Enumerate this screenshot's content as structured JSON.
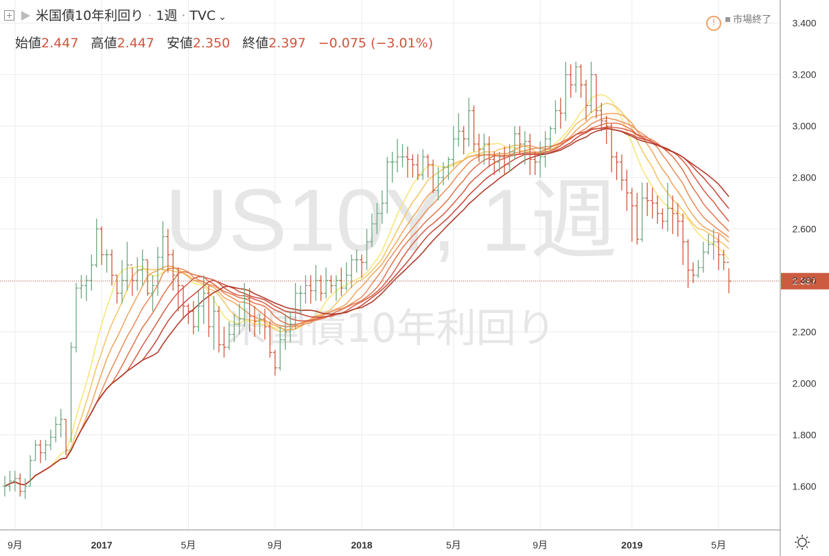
{
  "header": {
    "title": "米国債10年利回り",
    "interval": "1週",
    "source": "TVC",
    "status": "市場終了"
  },
  "ohlc": {
    "open_label": "始値",
    "open": "2.447",
    "high_label": "高値",
    "high": "2.447",
    "low_label": "安値",
    "low": "2.350",
    "close_label": "終値",
    "close": "2.397",
    "change": "−0.075 (−3.01%)"
  },
  "watermark": {
    "big": "US10Y, 1週",
    "small": "米国債10年利回り"
  },
  "colors": {
    "up": "#6aa67e",
    "down": "#d0543a",
    "price_tag": "#cc5b40",
    "ribbon": [
      "#f7e67a",
      "#f4c66a",
      "#f0a862",
      "#eb8f5d",
      "#e37852",
      "#d8614a",
      "#c94c3c",
      "#b03a2a"
    ]
  },
  "chart_data": {
    "type": "ohlc",
    "ylim": [
      1.43,
      3.49
    ],
    "yticks": [
      "1.600",
      "1.800",
      "2.000",
      "2.200",
      "2.400",
      "2.600",
      "2.800",
      "3.000",
      "3.200",
      "3.400"
    ],
    "xticks": [
      {
        "label": "9月",
        "week": 2
      },
      {
        "label": "2017",
        "week": 19
      },
      {
        "label": "5月",
        "week": 36
      },
      {
        "label": "9月",
        "week": 53
      },
      {
        "label": "2018",
        "week": 70
      },
      {
        "label": "5月",
        "week": 88
      },
      {
        "label": "9月",
        "week": 105
      },
      {
        "label": "2019",
        "week": 123
      },
      {
        "label": "5月",
        "week": 140
      }
    ],
    "last_price": "2.397",
    "close": [
      1.6,
      1.62,
      1.63,
      1.58,
      1.6,
      1.7,
      1.76,
      1.73,
      1.76,
      1.79,
      1.84,
      1.86,
      1.74,
      2.14,
      2.37,
      2.38,
      2.4,
      2.46,
      2.6,
      2.5,
      2.5,
      2.42,
      2.35,
      2.4,
      2.46,
      2.4,
      2.44,
      2.48,
      2.35,
      2.38,
      2.49,
      2.57,
      2.5,
      2.42,
      2.38,
      2.3,
      2.28,
      2.22,
      2.3,
      2.35,
      2.22,
      2.28,
      2.15,
      2.14,
      2.19,
      2.23,
      2.25,
      2.33,
      2.26,
      2.24,
      2.25,
      2.22,
      2.12,
      2.06,
      2.17,
      2.2,
      2.23,
      2.35,
      2.35,
      2.38,
      2.36,
      2.4,
      2.35,
      2.4,
      2.38,
      2.4,
      2.37,
      2.42,
      2.48,
      2.48,
      2.47,
      2.55,
      2.62,
      2.66,
      2.7,
      2.86,
      2.86,
      2.88,
      2.88,
      2.87,
      2.85,
      2.81,
      2.88,
      2.85,
      2.75,
      2.8,
      2.84,
      2.87,
      2.95,
      2.98,
      2.95,
      3.06,
      2.93,
      2.91,
      2.93,
      2.87,
      2.86,
      2.88,
      2.85,
      2.9,
      2.97,
      2.93,
      2.94,
      2.87,
      2.86,
      2.88,
      2.95,
      2.99,
      3.06,
      3.05,
      3.2,
      3.16,
      3.23,
      3.16,
      3.08,
      3.2,
      3.06,
      3.02,
      3.0,
      2.88,
      2.86,
      2.79,
      2.74,
      2.69,
      2.56,
      2.72,
      2.71,
      2.7,
      2.66,
      2.63,
      2.68,
      2.66,
      2.63,
      2.55,
      2.44,
      2.42,
      2.45,
      2.51,
      2.54,
      2.55,
      2.5,
      2.47,
      2.397
    ],
    "high": [
      1.64,
      1.66,
      1.66,
      1.65,
      1.63,
      1.72,
      1.78,
      1.78,
      1.78,
      1.82,
      1.87,
      1.9,
      1.86,
      2.16,
      2.39,
      2.42,
      2.42,
      2.5,
      2.64,
      2.61,
      2.52,
      2.52,
      2.42,
      2.48,
      2.55,
      2.45,
      2.49,
      2.52,
      2.48,
      2.42,
      2.53,
      2.63,
      2.6,
      2.52,
      2.45,
      2.38,
      2.31,
      2.32,
      2.36,
      2.42,
      2.38,
      2.34,
      2.3,
      2.22,
      2.24,
      2.27,
      2.31,
      2.39,
      2.37,
      2.3,
      2.27,
      2.29,
      2.24,
      2.13,
      2.22,
      2.27,
      2.28,
      2.39,
      2.38,
      2.42,
      2.42,
      2.46,
      2.42,
      2.45,
      2.42,
      2.42,
      2.45,
      2.47,
      2.5,
      2.52,
      2.5,
      2.6,
      2.66,
      2.7,
      2.75,
      2.88,
      2.9,
      2.95,
      2.93,
      2.92,
      2.89,
      2.89,
      2.91,
      2.89,
      2.87,
      2.84,
      2.86,
      2.88,
      3.0,
      3.05,
      3.0,
      3.11,
      3.08,
      2.97,
      2.97,
      2.96,
      2.9,
      2.9,
      2.92,
      2.93,
      3.0,
      3.0,
      2.98,
      2.97,
      2.9,
      2.94,
      2.98,
      3.0,
      3.1,
      3.11,
      3.25,
      3.24,
      3.25,
      3.24,
      3.18,
      3.25,
      3.2,
      3.09,
      3.04,
      3.01,
      2.9,
      2.89,
      2.83,
      2.76,
      2.74,
      2.78,
      2.78,
      2.76,
      2.73,
      2.68,
      2.78,
      2.73,
      2.7,
      2.66,
      2.56,
      2.47,
      2.48,
      2.55,
      2.58,
      2.6,
      2.58,
      2.52,
      2.447
    ],
    "low": [
      1.56,
      1.58,
      1.58,
      1.56,
      1.55,
      1.6,
      1.7,
      1.69,
      1.7,
      1.74,
      1.77,
      1.79,
      1.72,
      1.77,
      2.12,
      2.33,
      2.32,
      2.36,
      2.45,
      2.46,
      2.43,
      2.38,
      2.31,
      2.31,
      2.36,
      2.34,
      2.36,
      2.38,
      2.34,
      2.28,
      2.34,
      2.44,
      2.43,
      2.36,
      2.28,
      2.25,
      2.23,
      2.19,
      2.2,
      2.23,
      2.18,
      2.13,
      2.12,
      2.1,
      2.13,
      2.16,
      2.19,
      2.22,
      2.2,
      2.18,
      2.19,
      2.17,
      2.1,
      2.03,
      2.05,
      2.13,
      2.16,
      2.21,
      2.27,
      2.31,
      2.31,
      2.32,
      2.32,
      2.33,
      2.35,
      2.32,
      2.34,
      2.36,
      2.37,
      2.43,
      2.41,
      2.44,
      2.53,
      2.58,
      2.62,
      2.66,
      2.78,
      2.82,
      2.84,
      2.8,
      2.8,
      2.79,
      2.79,
      2.8,
      2.74,
      2.71,
      2.77,
      2.79,
      2.84,
      2.92,
      2.89,
      2.92,
      2.9,
      2.86,
      2.85,
      2.84,
      2.81,
      2.82,
      2.81,
      2.82,
      2.87,
      2.89,
      2.85,
      2.81,
      2.81,
      2.8,
      2.84,
      2.91,
      2.97,
      2.99,
      3.02,
      3.11,
      3.13,
      3.11,
      3.02,
      3.05,
      3.03,
      2.98,
      2.93,
      2.82,
      2.79,
      2.75,
      2.67,
      2.55,
      2.54,
      2.55,
      2.65,
      2.64,
      2.62,
      2.6,
      2.59,
      2.58,
      2.57,
      2.46,
      2.37,
      2.39,
      2.41,
      2.43,
      2.5,
      2.48,
      2.44,
      2.44,
      2.35
    ]
  }
}
